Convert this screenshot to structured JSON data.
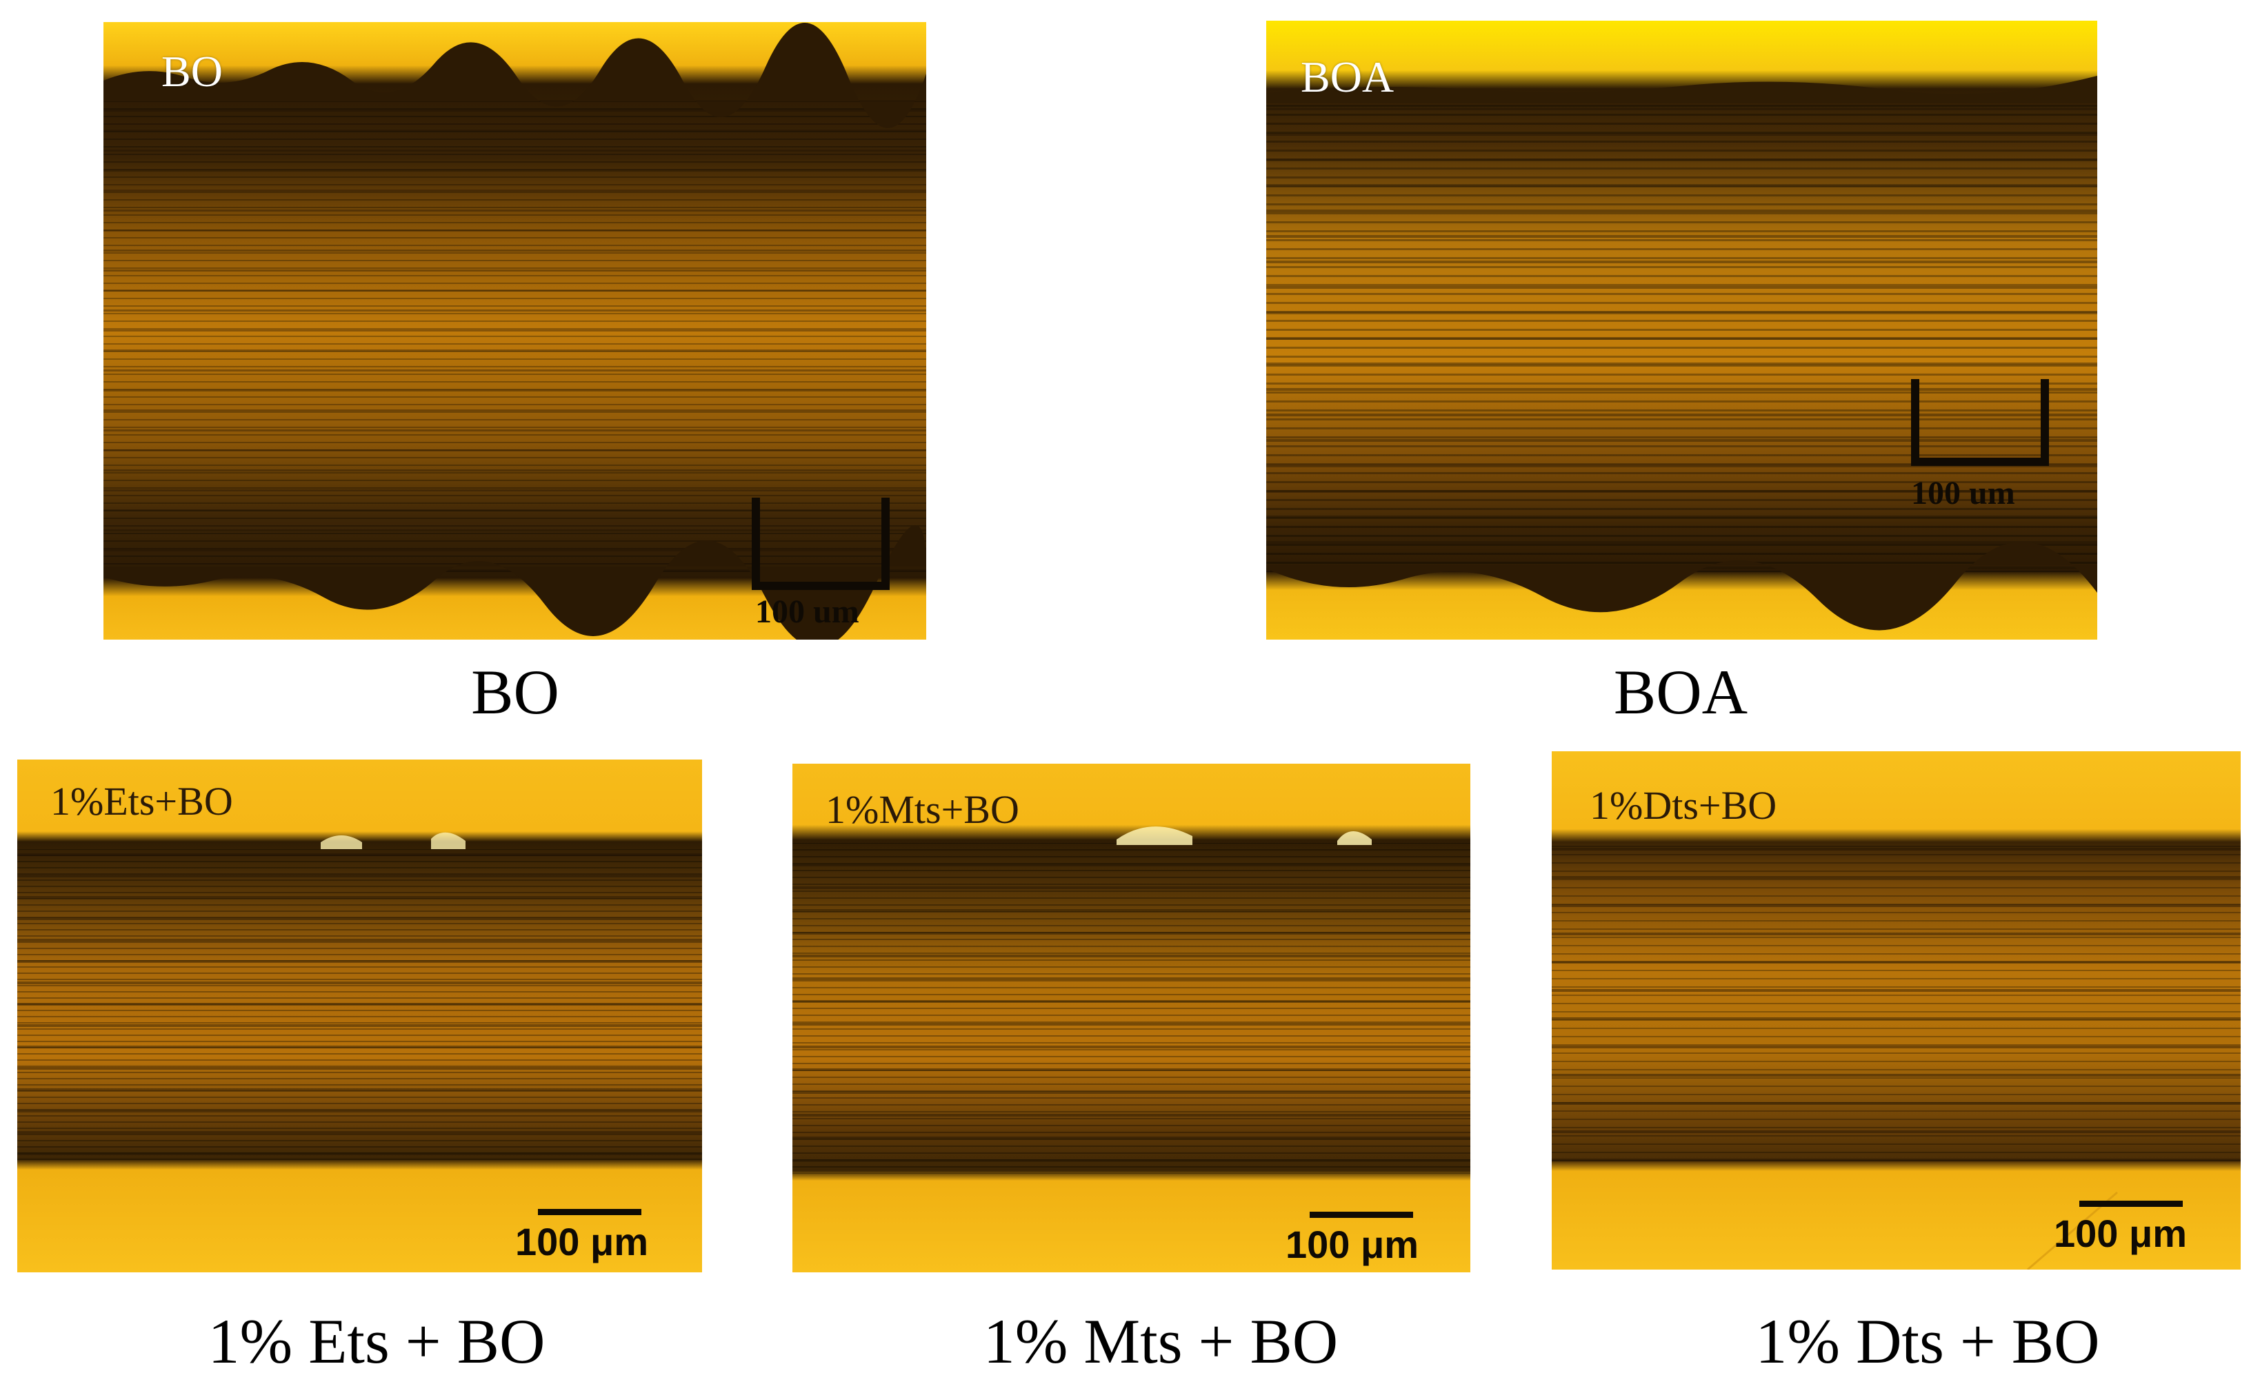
{
  "panels": [
    {
      "inset_label": "BO",
      "scale_label": "100 um",
      "caption": "BO"
    },
    {
      "inset_label": "BOA",
      "scale_label": "100 um",
      "caption": "BOA"
    },
    {
      "inset_label": "1%Ets+BO",
      "scale_label": "100 μm",
      "caption": "1% Ets + BO"
    },
    {
      "inset_label": "1%Mts+BO",
      "scale_label": "100 μm",
      "caption": "1% Mts + BO"
    },
    {
      "inset_label": "1%Dts+BO",
      "scale_label": "100 μm",
      "caption": "1% Dts + BO"
    }
  ],
  "colors": {
    "substrate": "#f5b616",
    "substrate_light": "#ffe600",
    "wear_track": "#3a2305",
    "wear_mid": "#b06f08",
    "scale_bar": "#0f0a04"
  }
}
